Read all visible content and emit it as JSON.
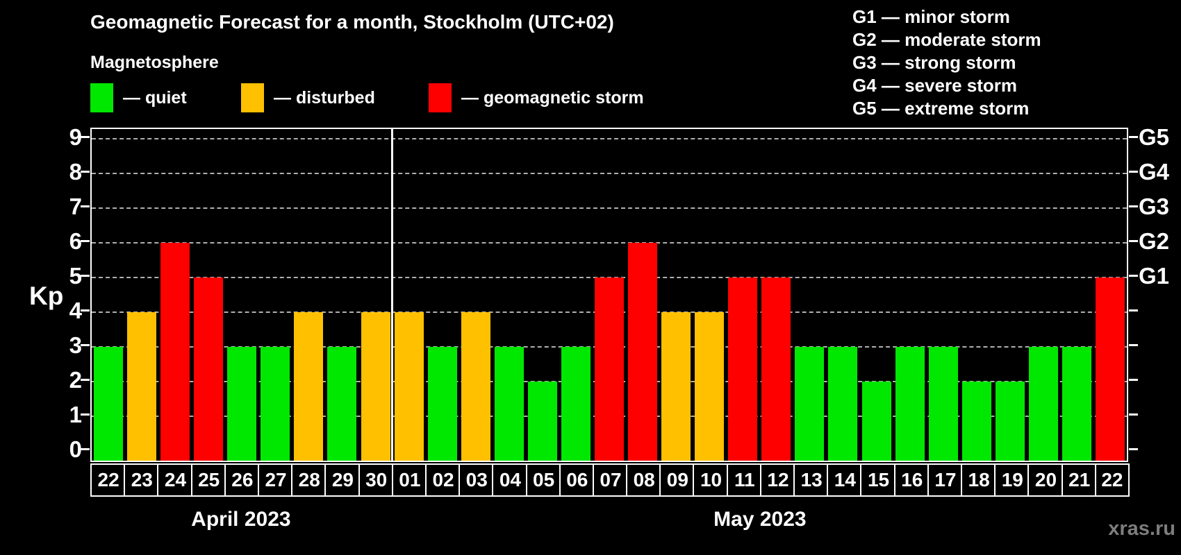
{
  "header": {
    "title": "Geomagnetic Forecast for a month, Stockholm (UTC+02)",
    "subtitle": "Magnetosphere"
  },
  "legend": {
    "items": [
      {
        "label": "— quiet",
        "state": "quiet"
      },
      {
        "label": "— disturbed",
        "state": "disturbed"
      },
      {
        "label": "— geomagnetic storm",
        "state": "storm"
      }
    ]
  },
  "storm_scale_legend": {
    "items": [
      "G1 — minor storm",
      "G2 — moderate storm",
      "G3 — strong storm",
      "G4 — severe storm",
      "G5 — extreme storm"
    ]
  },
  "watermark": "xras.ru",
  "colors": {
    "quiet": "#00e800",
    "disturbed": "#ffc000",
    "storm": "#ff0000",
    "grid": "#b0b0b0",
    "axis": "#ffffff",
    "watermark": "#7d7d7d"
  },
  "chart_data": {
    "type": "bar",
    "title": "Geomagnetic Forecast for a month, Stockholm (UTC+02)",
    "ylabel": "Kp",
    "ylim": [
      0,
      9
    ],
    "yticks": [
      0,
      1,
      2,
      3,
      4,
      5,
      6,
      7,
      8,
      9
    ],
    "grid": "dashed horizontal lines at Kp 1-9",
    "legend_position": "top",
    "right_axis_labels": [
      {
        "value": 5,
        "label": "G1"
      },
      {
        "value": 6,
        "label": "G2"
      },
      {
        "value": 7,
        "label": "G3"
      },
      {
        "value": 8,
        "label": "G4"
      },
      {
        "value": 9,
        "label": "G5"
      }
    ],
    "months": [
      {
        "label": "April 2023",
        "days": [
          {
            "date": "22",
            "kp": 3,
            "state": "quiet"
          },
          {
            "date": "23",
            "kp": 4,
            "state": "disturbed"
          },
          {
            "date": "24",
            "kp": 6,
            "state": "storm"
          },
          {
            "date": "25",
            "kp": 5,
            "state": "storm"
          },
          {
            "date": "26",
            "kp": 3,
            "state": "quiet"
          },
          {
            "date": "27",
            "kp": 3,
            "state": "quiet"
          },
          {
            "date": "28",
            "kp": 4,
            "state": "disturbed"
          },
          {
            "date": "29",
            "kp": 3,
            "state": "quiet"
          },
          {
            "date": "30",
            "kp": 4,
            "state": "disturbed"
          }
        ]
      },
      {
        "label": "May 2023",
        "days": [
          {
            "date": "01",
            "kp": 4,
            "state": "disturbed"
          },
          {
            "date": "02",
            "kp": 3,
            "state": "quiet"
          },
          {
            "date": "03",
            "kp": 4,
            "state": "disturbed"
          },
          {
            "date": "04",
            "kp": 3,
            "state": "quiet"
          },
          {
            "date": "05",
            "kp": 2,
            "state": "quiet"
          },
          {
            "date": "06",
            "kp": 3,
            "state": "quiet"
          },
          {
            "date": "07",
            "kp": 5,
            "state": "storm"
          },
          {
            "date": "08",
            "kp": 6,
            "state": "storm"
          },
          {
            "date": "09",
            "kp": 4,
            "state": "disturbed"
          },
          {
            "date": "10",
            "kp": 4,
            "state": "disturbed"
          },
          {
            "date": "11",
            "kp": 5,
            "state": "storm"
          },
          {
            "date": "12",
            "kp": 5,
            "state": "storm"
          },
          {
            "date": "13",
            "kp": 3,
            "state": "quiet"
          },
          {
            "date": "14",
            "kp": 3,
            "state": "quiet"
          },
          {
            "date": "15",
            "kp": 2,
            "state": "quiet"
          },
          {
            "date": "16",
            "kp": 3,
            "state": "quiet"
          },
          {
            "date": "17",
            "kp": 3,
            "state": "quiet"
          },
          {
            "date": "18",
            "kp": 2,
            "state": "quiet"
          },
          {
            "date": "19",
            "kp": 2,
            "state": "quiet"
          },
          {
            "date": "20",
            "kp": 3,
            "state": "quiet"
          },
          {
            "date": "21",
            "kp": 3,
            "state": "quiet"
          },
          {
            "date": "22",
            "kp": 5,
            "state": "storm"
          }
        ]
      }
    ]
  }
}
